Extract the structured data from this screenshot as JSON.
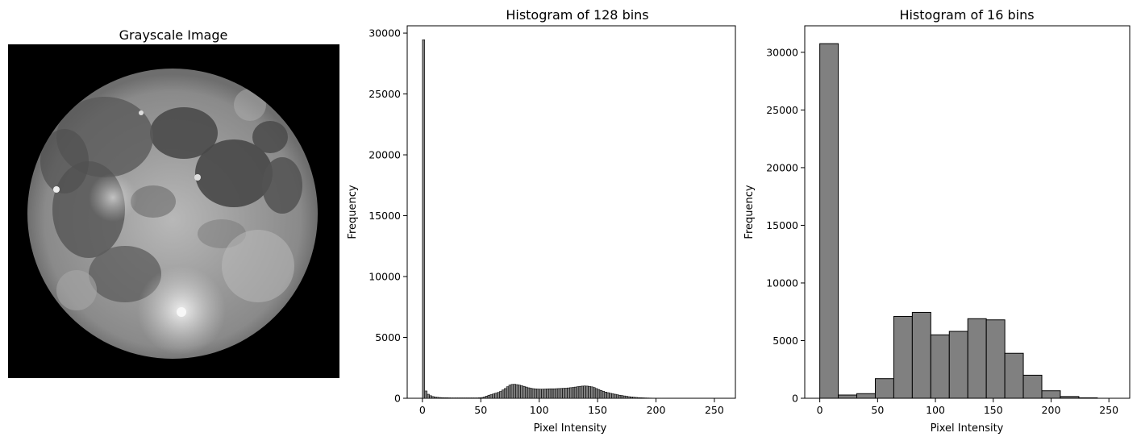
{
  "panels": {
    "image_title": "Grayscale Image",
    "hist128_title": "Histogram of 128 bins",
    "hist16_title": "Histogram of 16 bins"
  },
  "colors": {
    "bar_fill": "#808080",
    "bar_edge": "#000000",
    "image_background": "#000000"
  },
  "chart_data": [
    {
      "type": "image",
      "title": "Grayscale Image",
      "description_visible": "grayscale photograph of the full moon on black background"
    },
    {
      "type": "bar",
      "title": "Histogram of 128 bins",
      "xlabel": "Pixel Intensity",
      "ylabel": "Frequency",
      "xlim": [
        -13,
        268
      ],
      "ylim": [
        0,
        30600
      ],
      "xticks": [
        0,
        50,
        100,
        150,
        200,
        250
      ],
      "yticks": [
        0,
        5000,
        10000,
        15000,
        20000,
        25000,
        30000
      ],
      "bin_width": 2,
      "bin_start": 0,
      "values": [
        29450,
        600,
        330,
        210,
        140,
        100,
        80,
        60,
        50,
        40,
        40,
        35,
        30,
        30,
        30,
        30,
        30,
        30,
        30,
        30,
        30,
        30,
        30,
        30,
        40,
        60,
        100,
        180,
        250,
        300,
        360,
        420,
        480,
        560,
        680,
        800,
        950,
        1080,
        1140,
        1150,
        1120,
        1080,
        1030,
        980,
        920,
        860,
        820,
        790,
        770,
        760,
        750,
        750,
        760,
        770,
        780,
        780,
        780,
        790,
        800,
        810,
        820,
        830,
        850,
        870,
        890,
        920,
        950,
        980,
        1000,
        1010,
        1000,
        980,
        940,
        880,
        800,
        720,
        640,
        570,
        510,
        460,
        410,
        370,
        330,
        290,
        250,
        220,
        190,
        160,
        130,
        110,
        90,
        70,
        55,
        45,
        35,
        28,
        22,
        18,
        14,
        11,
        9,
        7,
        5,
        4,
        3,
        2,
        2,
        1,
        1,
        1,
        0,
        0,
        0,
        0,
        0,
        0,
        0,
        0,
        0,
        0,
        0,
        0,
        0,
        0,
        0,
        0,
        0,
        0
      ]
    },
    {
      "type": "bar",
      "title": "Histogram of 16 bins",
      "xlabel": "Pixel Intensity",
      "ylabel": "Frequency",
      "xlim": [
        -13,
        268
      ],
      "ylim": [
        0,
        32300
      ],
      "xticks": [
        0,
        50,
        100,
        150,
        200,
        250
      ],
      "yticks": [
        0,
        5000,
        10000,
        15000,
        20000,
        25000,
        30000
      ],
      "bin_width": 16,
      "bin_start": 0,
      "values": [
        30750,
        280,
        400,
        1700,
        7100,
        7450,
        5500,
        5800,
        6900,
        6800,
        3900,
        2000,
        650,
        150,
        40,
        0
      ]
    }
  ]
}
